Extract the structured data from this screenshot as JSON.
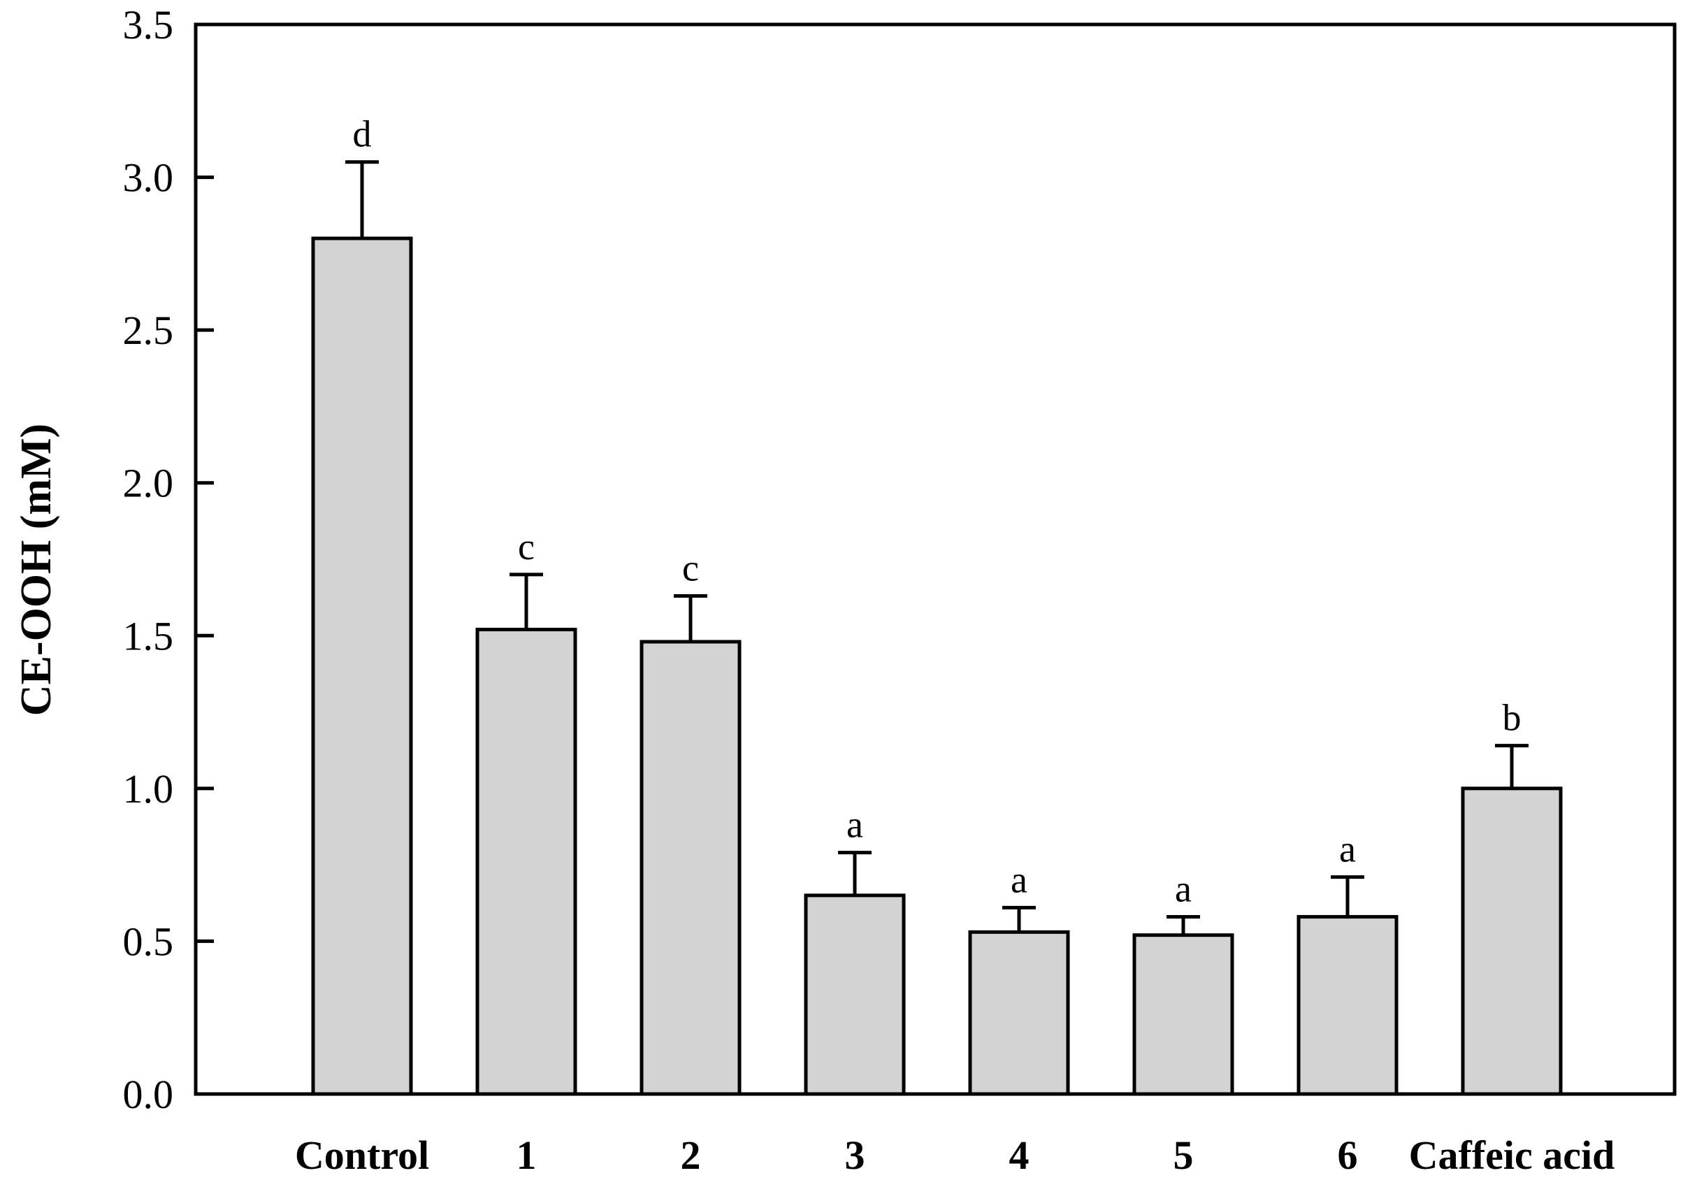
{
  "chart_data": {
    "type": "bar",
    "title": "",
    "xlabel": "",
    "ylabel": "CE-OOH (mM)",
    "ylim": [
      0,
      3.5
    ],
    "yticks": [
      "0.0",
      "0.5",
      "1.0",
      "1.5",
      "2.0",
      "2.5",
      "3.0",
      "3.5"
    ],
    "grid": false,
    "categories": [
      "Control",
      "1",
      "2",
      "3",
      "4",
      "5",
      "6",
      "Caffeic acid"
    ],
    "series": [
      {
        "values": [
          2.8,
          1.52,
          1.48,
          0.65,
          0.53,
          0.52,
          0.58,
          1.0
        ],
        "error": [
          0.25,
          0.18,
          0.15,
          0.14,
          0.08,
          0.06,
          0.13,
          0.14
        ],
        "color": "#d3d3d3"
      }
    ],
    "annotations": [
      "d",
      "c",
      "c",
      "a",
      "a",
      "a",
      "a",
      "b"
    ]
  }
}
